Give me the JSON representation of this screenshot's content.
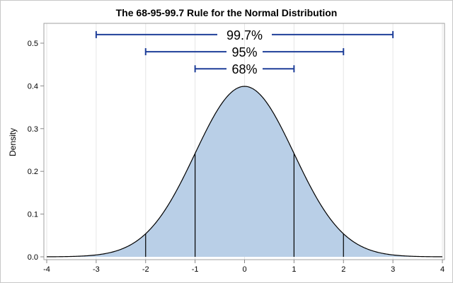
{
  "chart_data": {
    "type": "area",
    "title": "The 68-95-99.7 Rule for the Normal Distribution",
    "xlabel": "",
    "ylabel": "Density",
    "xlim": [
      -4,
      4
    ],
    "ylim": [
      0,
      0.55
    ],
    "xticks": [
      "-4",
      "-3",
      "-2",
      "-1",
      "0",
      "1",
      "2",
      "3",
      "4"
    ],
    "yticks": [
      "0.0",
      "0.1",
      "0.2",
      "0.3",
      "0.4",
      "0.5"
    ],
    "grid": "vertical",
    "curve": {
      "distribution": "standard normal",
      "mean": 0,
      "sd": 1,
      "fill_color": "#b9cfe7",
      "line_color": "#000000"
    },
    "drop_lines_x": [
      -2,
      -1,
      1,
      2
    ],
    "intervals": [
      {
        "label": "99.7%",
        "low": -3,
        "high": 3,
        "y": 0.52
      },
      {
        "label": "95%",
        "low": -2,
        "high": 2,
        "y": 0.48
      },
      {
        "label": "68%",
        "low": -1,
        "high": 1,
        "y": 0.44
      }
    ],
    "interval_color": "#1f3f99"
  }
}
